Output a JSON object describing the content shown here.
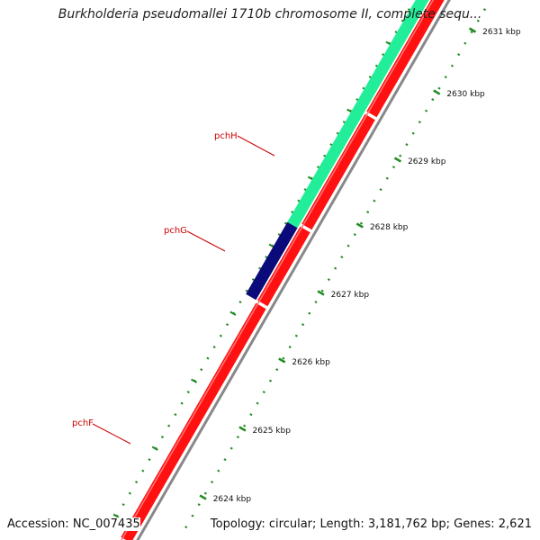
{
  "title": "Burkholderia pseudomallei 1710b chromosome II, complete sequ...",
  "footer": {
    "accession": "Accession: NC_007435",
    "summary": "Topology: circular; Length: 3,181,762 bp; Genes: 2,621"
  },
  "colors": {
    "cds_forward": "#ff1111",
    "cds_reverse": "#ff1111",
    "pchH": "#22ee99",
    "pchG": "#0a0a7a",
    "ticks": "#228b22",
    "labels": "#cc0000",
    "backbone": "#888888"
  },
  "ticks": [
    {
      "label": "2631 kbp"
    },
    {
      "label": "2630 kbp"
    },
    {
      "label": "2629 kbp"
    },
    {
      "label": "2628 kbp"
    },
    {
      "label": "2627 kbp"
    },
    {
      "label": "2626 kbp"
    },
    {
      "label": "2625 kbp"
    },
    {
      "label": "2624 kbp"
    }
  ],
  "genes": [
    {
      "name": "pchH"
    },
    {
      "name": "pchG"
    },
    {
      "name": "pchF"
    }
  ]
}
